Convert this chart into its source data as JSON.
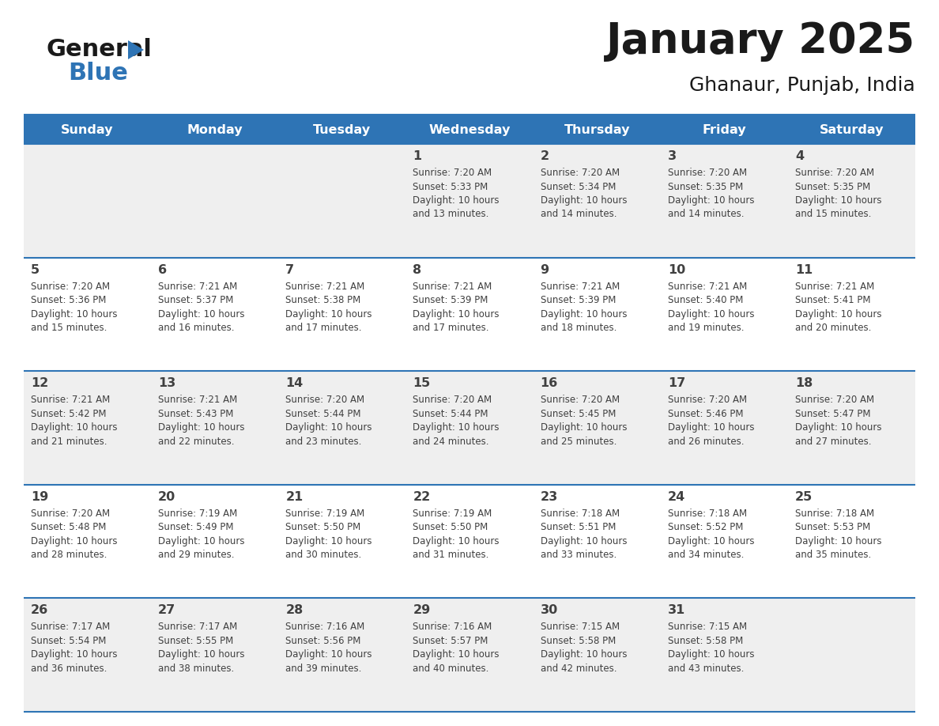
{
  "title": "January 2025",
  "subtitle": "Ghanaur, Punjab, India",
  "days_of_week": [
    "Sunday",
    "Monday",
    "Tuesday",
    "Wednesday",
    "Thursday",
    "Friday",
    "Saturday"
  ],
  "header_bg": "#2E74B5",
  "header_text_color": "#FFFFFF",
  "cell_bg_odd": "#EFEFEF",
  "cell_bg_even": "#FFFFFF",
  "divider_color": "#2E74B5",
  "text_color": "#404040",
  "title_color": "#1a1a1a",
  "logo_general_color": "#1a1a1a",
  "logo_blue_color": "#2E74B5",
  "logo_triangle_color": "#2E74B5",
  "calendar_data": [
    [
      null,
      null,
      null,
      {
        "day": 1,
        "sunrise": "7:20 AM",
        "sunset": "5:33 PM",
        "daylight": "10 hours and 13 minutes."
      },
      {
        "day": 2,
        "sunrise": "7:20 AM",
        "sunset": "5:34 PM",
        "daylight": "10 hours and 14 minutes."
      },
      {
        "day": 3,
        "sunrise": "7:20 AM",
        "sunset": "5:35 PM",
        "daylight": "10 hours and 14 minutes."
      },
      {
        "day": 4,
        "sunrise": "7:20 AM",
        "sunset": "5:35 PM",
        "daylight": "10 hours and 15 minutes."
      }
    ],
    [
      {
        "day": 5,
        "sunrise": "7:20 AM",
        "sunset": "5:36 PM",
        "daylight": "10 hours and 15 minutes."
      },
      {
        "day": 6,
        "sunrise": "7:21 AM",
        "sunset": "5:37 PM",
        "daylight": "10 hours and 16 minutes."
      },
      {
        "day": 7,
        "sunrise": "7:21 AM",
        "sunset": "5:38 PM",
        "daylight": "10 hours and 17 minutes."
      },
      {
        "day": 8,
        "sunrise": "7:21 AM",
        "sunset": "5:39 PM",
        "daylight": "10 hours and 17 minutes."
      },
      {
        "day": 9,
        "sunrise": "7:21 AM",
        "sunset": "5:39 PM",
        "daylight": "10 hours and 18 minutes."
      },
      {
        "day": 10,
        "sunrise": "7:21 AM",
        "sunset": "5:40 PM",
        "daylight": "10 hours and 19 minutes."
      },
      {
        "day": 11,
        "sunrise": "7:21 AM",
        "sunset": "5:41 PM",
        "daylight": "10 hours and 20 minutes."
      }
    ],
    [
      {
        "day": 12,
        "sunrise": "7:21 AM",
        "sunset": "5:42 PM",
        "daylight": "10 hours and 21 minutes."
      },
      {
        "day": 13,
        "sunrise": "7:21 AM",
        "sunset": "5:43 PM",
        "daylight": "10 hours and 22 minutes."
      },
      {
        "day": 14,
        "sunrise": "7:20 AM",
        "sunset": "5:44 PM",
        "daylight": "10 hours and 23 minutes."
      },
      {
        "day": 15,
        "sunrise": "7:20 AM",
        "sunset": "5:44 PM",
        "daylight": "10 hours and 24 minutes."
      },
      {
        "day": 16,
        "sunrise": "7:20 AM",
        "sunset": "5:45 PM",
        "daylight": "10 hours and 25 minutes."
      },
      {
        "day": 17,
        "sunrise": "7:20 AM",
        "sunset": "5:46 PM",
        "daylight": "10 hours and 26 minutes."
      },
      {
        "day": 18,
        "sunrise": "7:20 AM",
        "sunset": "5:47 PM",
        "daylight": "10 hours and 27 minutes."
      }
    ],
    [
      {
        "day": 19,
        "sunrise": "7:20 AM",
        "sunset": "5:48 PM",
        "daylight": "10 hours and 28 minutes."
      },
      {
        "day": 20,
        "sunrise": "7:19 AM",
        "sunset": "5:49 PM",
        "daylight": "10 hours and 29 minutes."
      },
      {
        "day": 21,
        "sunrise": "7:19 AM",
        "sunset": "5:50 PM",
        "daylight": "10 hours and 30 minutes."
      },
      {
        "day": 22,
        "sunrise": "7:19 AM",
        "sunset": "5:50 PM",
        "daylight": "10 hours and 31 minutes."
      },
      {
        "day": 23,
        "sunrise": "7:18 AM",
        "sunset": "5:51 PM",
        "daylight": "10 hours and 33 minutes."
      },
      {
        "day": 24,
        "sunrise": "7:18 AM",
        "sunset": "5:52 PM",
        "daylight": "10 hours and 34 minutes."
      },
      {
        "day": 25,
        "sunrise": "7:18 AM",
        "sunset": "5:53 PM",
        "daylight": "10 hours and 35 minutes."
      }
    ],
    [
      {
        "day": 26,
        "sunrise": "7:17 AM",
        "sunset": "5:54 PM",
        "daylight": "10 hours and 36 minutes."
      },
      {
        "day": 27,
        "sunrise": "7:17 AM",
        "sunset": "5:55 PM",
        "daylight": "10 hours and 38 minutes."
      },
      {
        "day": 28,
        "sunrise": "7:16 AM",
        "sunset": "5:56 PM",
        "daylight": "10 hours and 39 minutes."
      },
      {
        "day": 29,
        "sunrise": "7:16 AM",
        "sunset": "5:57 PM",
        "daylight": "10 hours and 40 minutes."
      },
      {
        "day": 30,
        "sunrise": "7:15 AM",
        "sunset": "5:58 PM",
        "daylight": "10 hours and 42 minutes."
      },
      {
        "day": 31,
        "sunrise": "7:15 AM",
        "sunset": "5:58 PM",
        "daylight": "10 hours and 43 minutes."
      },
      null
    ]
  ]
}
